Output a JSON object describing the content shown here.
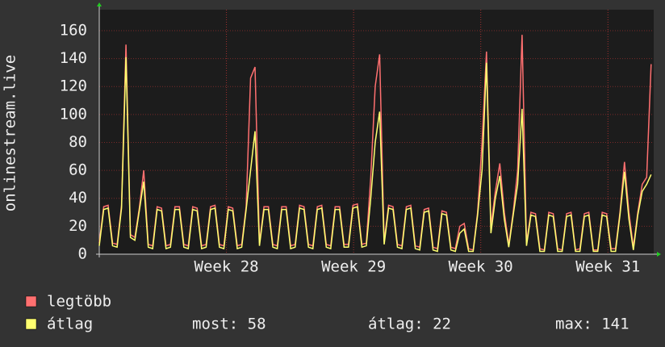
{
  "chart_data": {
    "type": "line",
    "y_label": "onlinestream.live",
    "x": [
      27.0,
      27.035,
      27.07,
      27.105,
      27.14,
      27.175,
      27.21,
      27.245,
      27.28,
      27.315,
      27.35,
      27.385,
      27.42,
      27.455,
      27.49,
      27.525,
      27.56,
      27.595,
      27.63,
      27.665,
      27.7,
      27.735,
      27.77,
      27.805,
      27.84,
      27.875,
      27.91,
      27.945,
      27.98,
      28.015,
      28.05,
      28.085,
      28.12,
      28.155,
      28.19,
      28.225,
      28.26,
      28.295,
      28.33,
      28.365,
      28.4,
      28.435,
      28.47,
      28.505,
      28.54,
      28.575,
      28.61,
      28.645,
      28.68,
      28.715,
      28.75,
      28.785,
      28.82,
      28.855,
      28.89,
      28.925,
      28.96,
      28.995,
      29.03,
      29.065,
      29.1,
      29.135,
      29.17,
      29.205,
      29.24,
      29.275,
      29.31,
      29.345,
      29.38,
      29.415,
      29.45,
      29.485,
      29.52,
      29.555,
      29.59,
      29.625,
      29.66,
      29.695,
      29.73,
      29.765,
      29.8,
      29.835,
      29.87,
      29.905,
      29.94,
      29.975,
      30.01,
      30.045,
      30.08,
      30.115,
      30.15,
      30.185,
      30.22,
      30.255,
      30.29,
      30.325,
      30.36,
      30.395,
      30.43,
      30.465,
      30.5,
      30.535,
      30.57,
      30.605,
      30.64,
      30.675,
      30.71,
      30.745,
      30.78,
      30.815,
      30.85,
      30.885,
      30.92,
      30.955,
      30.99,
      31.025,
      31.06,
      31.095,
      31.13,
      31.165,
      31.2,
      31.235,
      31.27,
      31.305,
      31.34
    ],
    "series": [
      {
        "name": "legtöbb",
        "color": "#ff7070",
        "values": [
          8,
          34,
          35,
          8,
          7,
          35,
          150,
          14,
          12,
          33,
          60,
          7,
          6,
          34,
          33,
          6,
          7,
          34,
          34,
          7,
          6,
          34,
          33,
          6,
          7,
          34,
          35,
          7,
          6,
          34,
          33,
          6,
          7,
          34,
          126,
          134,
          8,
          34,
          34,
          7,
          6,
          34,
          34,
          6,
          7,
          35,
          34,
          7,
          6,
          34,
          35,
          7,
          6,
          34,
          34,
          7,
          7,
          35,
          36,
          7,
          8,
          55,
          120,
          143,
          9,
          35,
          34,
          7,
          6,
          34,
          35,
          6,
          5,
          32,
          33,
          5,
          4,
          31,
          30,
          5,
          4,
          20,
          22,
          4,
          3,
          30,
          80,
          145,
          20,
          45,
          65,
          30,
          7,
          30,
          60,
          157,
          8,
          30,
          29,
          4,
          3,
          30,
          29,
          4,
          3,
          29,
          30,
          3,
          4,
          29,
          30,
          3,
          3,
          30,
          29,
          4,
          4,
          30,
          66,
          30,
          5,
          30,
          50,
          55,
          136
        ]
      },
      {
        "name": "átlag",
        "color": "#ffff70",
        "values": [
          6,
          32,
          33,
          6,
          5,
          33,
          141,
          12,
          10,
          31,
          52,
          5,
          4,
          32,
          31,
          4,
          5,
          32,
          32,
          5,
          4,
          32,
          31,
          4,
          5,
          32,
          33,
          5,
          4,
          32,
          31,
          4,
          5,
          32,
          60,
          88,
          6,
          32,
          32,
          5,
          4,
          32,
          32,
          4,
          5,
          33,
          32,
          5,
          4,
          32,
          33,
          5,
          4,
          32,
          32,
          5,
          5,
          33,
          34,
          5,
          6,
          40,
          80,
          102,
          7,
          33,
          32,
          5,
          4,
          32,
          33,
          4,
          3,
          30,
          31,
          3,
          2,
          29,
          28,
          3,
          2,
          15,
          18,
          2,
          2,
          28,
          60,
          137,
          15,
          40,
          56,
          25,
          5,
          28,
          50,
          104,
          6,
          28,
          27,
          2,
          2,
          28,
          27,
          2,
          2,
          27,
          28,
          2,
          2,
          27,
          28,
          2,
          2,
          28,
          27,
          2,
          2,
          28,
          59,
          25,
          3,
          28,
          45,
          50,
          57
        ]
      }
    ],
    "stats": [
      "most: 58",
      "átlag: 22",
      "max: 141"
    ],
    "xlim": [
      27.0,
      31.36
    ],
    "xticks": [
      {
        "value": 28,
        "label": "Week 28"
      },
      {
        "value": 29,
        "label": "Week 29"
      },
      {
        "value": 30,
        "label": "Week 30"
      },
      {
        "value": 31,
        "label": "Week 31"
      }
    ],
    "ylim": [
      0,
      175
    ],
    "yticks": [
      0,
      20,
      40,
      60,
      80,
      100,
      120,
      140,
      160
    ],
    "grid": true
  }
}
